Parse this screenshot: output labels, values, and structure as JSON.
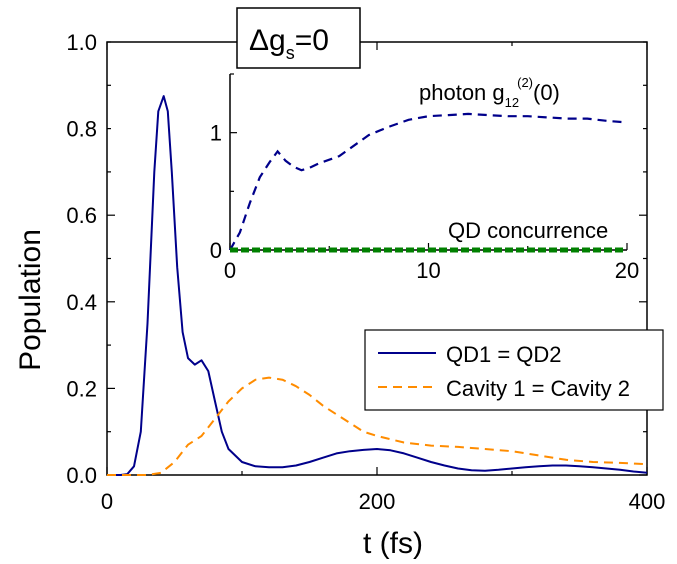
{
  "chart_data": [
    {
      "type": "line",
      "xlabel": "t (fs)",
      "ylabel": "Population",
      "xlim": [
        0,
        400
      ],
      "ylim": [
        0,
        1.0
      ],
      "x_ticks": [
        "0",
        "200",
        "400"
      ],
      "x_tick_values": [
        0,
        200,
        400
      ],
      "y_ticks": [
        "0.0",
        "0.2",
        "0.4",
        "0.6",
        "0.8",
        "1.0"
      ],
      "y_tick_values": [
        0,
        0.2,
        0.4,
        0.6,
        0.8,
        1.0
      ],
      "grid": false,
      "legend_placement": "center-right",
      "series": [
        {
          "name": "QD1 = QD2",
          "color": "#00008b",
          "style": "solid",
          "x": [
            0,
            10,
            15,
            20,
            25,
            30,
            35,
            38,
            42,
            45,
            48,
            52,
            56,
            60,
            65,
            70,
            75,
            80,
            85,
            90,
            100,
            110,
            120,
            130,
            140,
            150,
            160,
            170,
            180,
            190,
            200,
            210,
            220,
            230,
            240,
            250,
            260,
            270,
            280,
            290,
            300,
            310,
            320,
            330,
            340,
            350,
            360,
            370,
            380,
            390,
            400
          ],
          "y": [
            0,
            0,
            0.002,
            0.02,
            0.1,
            0.35,
            0.7,
            0.84,
            0.875,
            0.84,
            0.7,
            0.48,
            0.33,
            0.27,
            0.255,
            0.265,
            0.24,
            0.17,
            0.1,
            0.06,
            0.03,
            0.02,
            0.018,
            0.018,
            0.022,
            0.03,
            0.04,
            0.05,
            0.055,
            0.058,
            0.06,
            0.057,
            0.05,
            0.04,
            0.03,
            0.022,
            0.015,
            0.011,
            0.01,
            0.012,
            0.015,
            0.018,
            0.02,
            0.022,
            0.022,
            0.02,
            0.018,
            0.015,
            0.012,
            0.008,
            0.005
          ]
        },
        {
          "name": "Cavity 1 = Cavity 2",
          "color": "#ff8c00",
          "style": "dashed",
          "x": [
            0,
            30,
            40,
            50,
            60,
            70,
            80,
            90,
            100,
            110,
            120,
            130,
            140,
            150,
            160,
            170,
            180,
            190,
            200,
            220,
            240,
            260,
            280,
            300,
            320,
            340,
            360,
            380,
            400
          ],
          "y": [
            0,
            0,
            0.005,
            0.03,
            0.07,
            0.09,
            0.13,
            0.17,
            0.2,
            0.22,
            0.225,
            0.22,
            0.205,
            0.185,
            0.16,
            0.14,
            0.12,
            0.1,
            0.09,
            0.075,
            0.068,
            0.065,
            0.06,
            0.055,
            0.045,
            0.035,
            0.03,
            0.028,
            0.025
          ]
        }
      ]
    },
    {
      "type": "line",
      "title": "",
      "xlim": [
        0,
        20
      ],
      "ylim": [
        0,
        1.5
      ],
      "x_ticks": [
        "0",
        "10",
        "20"
      ],
      "x_tick_values": [
        0,
        10,
        20
      ],
      "y_ticks": [
        "0",
        "1"
      ],
      "y_tick_values": [
        0,
        1
      ],
      "grid": false,
      "series": [
        {
          "name": "photon g12(2)(0)",
          "color": "#00008b",
          "style": "dashed",
          "x": [
            0,
            0.5,
            1,
            1.5,
            2,
            2.4,
            2.8,
            3.2,
            3.6,
            4,
            4.5,
            5,
            5.5,
            6,
            7,
            8,
            9,
            10,
            11,
            12,
            13,
            14,
            15,
            16,
            17,
            18,
            19,
            19.8
          ],
          "y": [
            0,
            0.15,
            0.4,
            0.62,
            0.75,
            0.84,
            0.76,
            0.71,
            0.68,
            0.7,
            0.74,
            0.77,
            0.8,
            0.86,
            0.98,
            1.05,
            1.11,
            1.14,
            1.15,
            1.16,
            1.15,
            1.14,
            1.14,
            1.13,
            1.12,
            1.12,
            1.1,
            1.09
          ]
        },
        {
          "name": "QD concurrence",
          "color": "#008000",
          "style": "dashed",
          "x": [
            0,
            19.8
          ],
          "y": [
            0,
            0
          ]
        }
      ]
    }
  ],
  "labels": {
    "inset_title_delta": "Δg",
    "inset_title_sub": "s",
    "inset_title_rest": "=0",
    "photon_main": "photon g",
    "photon_sub": "12",
    "photon_sup": "(2)",
    "photon_tail": "(0)",
    "concurrence": "QD concurrence"
  }
}
